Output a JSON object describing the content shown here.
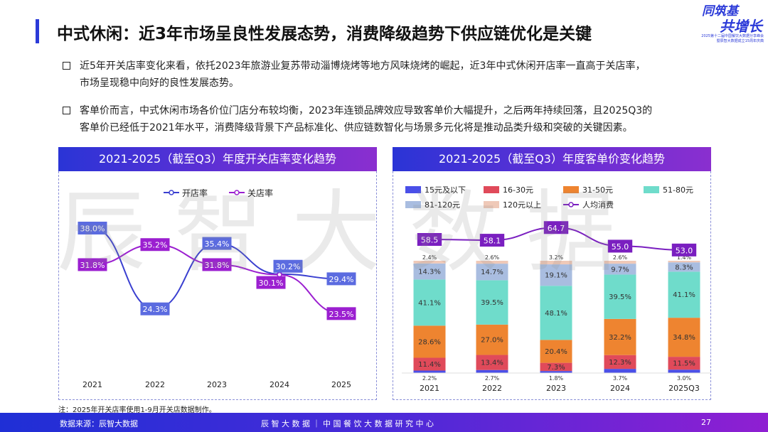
{
  "header": {
    "title": "中式休闲：近3年市场呈良性发展态势，消费降级趋势下供应链优化是关键",
    "logo": {
      "line1": "同筑基",
      "line2": "共增长",
      "line3": "2025第十二届中国餐饮大数据分享峰会",
      "line4": "暨辰智大数据成立15周年庆典"
    }
  },
  "bullets": [
    {
      "line1": "近5年开关店率变化来看，依托2023年旅游业复苏带动淄博烧烤等地方风味烧烤的崛起，近3年中式休闲开店率一直高于关店率，",
      "line2": "市场呈现稳中向好的良性发展态势。"
    },
    {
      "line1": "客单价而言，中式休闲市场各价位门店分布较均衡，2023年连锁品牌效应导致客单价大幅提升，之后两年持续回落，且2025Q3的",
      "line2": "客单价已经低于2021年水平，消费降级背景下产品标准化、供应链数智化与场景多元化将是推动品类升级和突破的关键因素。"
    }
  ],
  "watermark": "辰智大数据",
  "chart_data": [
    {
      "type": "line",
      "title": "2021-2025（截至Q3）年度开关店率变化趋势",
      "categories": [
        "2021",
        "2022",
        "2023",
        "2024",
        "2025"
      ],
      "legend_position": "top",
      "grid": false,
      "series": [
        {
          "name": "开店率",
          "values": [
            38.0,
            24.3,
            35.4,
            30.2,
            29.4
          ],
          "labels": [
            "38.0%",
            "24.3%",
            "35.4%",
            "30.2%",
            "29.4%"
          ],
          "color": "#3a3fd0"
        },
        {
          "name": "关店率",
          "values": [
            31.8,
            35.2,
            31.8,
            30.1,
            23.5
          ],
          "labels": [
            "31.8%",
            "35.2%",
            "31.8%",
            "30.1%",
            "23.5%"
          ],
          "color": "#9b1fd0"
        }
      ]
    },
    {
      "type": "bar",
      "stacked": true,
      "title": "2021-2025（截至Q3）年度客单价变化趋势",
      "categories": [
        "2021",
        "2022",
        "2023",
        "2024",
        "2025Q3"
      ],
      "legend_position": "top",
      "grid": false,
      "series": [
        {
          "name": "15元及以下",
          "values": [
            2.2,
            2.7,
            1.8,
            3.7,
            3.0
          ],
          "color": "#4a4fe8"
        },
        {
          "name": "16-30元",
          "values": [
            11.4,
            13.4,
            7.3,
            12.3,
            11.5
          ],
          "color": "#e04a5a"
        },
        {
          "name": "31-50元",
          "values": [
            28.6,
            27.0,
            20.4,
            32.2,
            34.8
          ],
          "color": "#ee8430"
        },
        {
          "name": "51-80元",
          "values": [
            41.1,
            39.5,
            48.1,
            39.5,
            41.1
          ],
          "color": "#6fdccb"
        },
        {
          "name": "81-120元",
          "values": [
            14.3,
            14.7,
            19.1,
            9.7,
            8.3
          ],
          "color": "#a9bde0"
        },
        {
          "name": "120元以上",
          "values": [
            2.4,
            2.6,
            3.2,
            2.6,
            1.4
          ],
          "color": "#efc9b8"
        }
      ],
      "line": {
        "name": "人均消费",
        "values": [
          58.5,
          58.1,
          64.7,
          55.0,
          53.0
        ],
        "color": "#7a1fc0"
      }
    }
  ],
  "note": "注：2025年开关店率使用1-9月开关店数据制作。",
  "footer": {
    "source": "数据来源：辰智大数据",
    "center": "辰 智 大 数 据 ｜ 中 国 餐 饮 大 数 据 研 究 中 心",
    "page": "27"
  }
}
